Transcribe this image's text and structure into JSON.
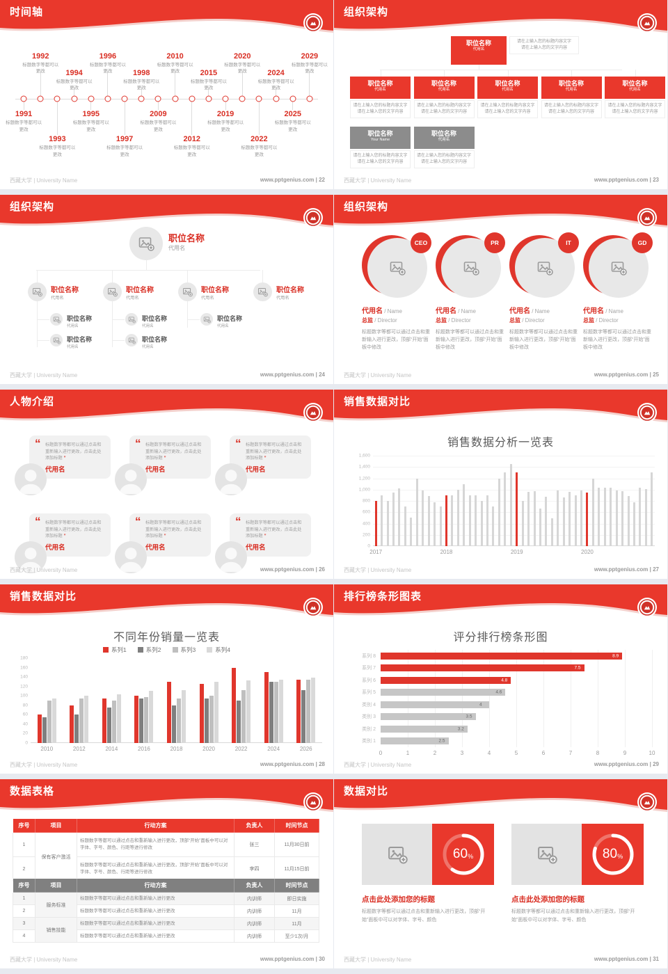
{
  "common": {
    "footer_left": "西藏大学 | University Name",
    "footer_site": "www.pptgenius.com",
    "brand_red": "#e9382c",
    "logo_name": "university-seal-logo"
  },
  "slides": [
    {
      "type": "timeline",
      "title": "时间轴",
      "page": "22",
      "footer_right": "www.pptgenius.com | 22",
      "event_caption": "标题数字等都可以更改",
      "events": [
        {
          "year": "1991",
          "dir": "down",
          "level": 1
        },
        {
          "year": "1992",
          "dir": "up",
          "level": 1
        },
        {
          "year": "1993",
          "dir": "down",
          "level": 2
        },
        {
          "year": "1994",
          "dir": "up",
          "level": 2
        },
        {
          "year": "1995",
          "dir": "down",
          "level": 1
        },
        {
          "year": "1996",
          "dir": "up",
          "level": 1
        },
        {
          "year": "1997",
          "dir": "down",
          "level": 2
        },
        {
          "year": "1998",
          "dir": "up",
          "level": 2
        },
        {
          "year": "2009",
          "dir": "down",
          "level": 1
        },
        {
          "year": "2010",
          "dir": "up",
          "level": 1
        },
        {
          "year": "2012",
          "dir": "down",
          "level": 2
        },
        {
          "year": "2015",
          "dir": "up",
          "level": 2
        },
        {
          "year": "2019",
          "dir": "down",
          "level": 1
        },
        {
          "year": "2020",
          "dir": "up",
          "level": 1
        },
        {
          "year": "2022",
          "dir": "down",
          "level": 2
        },
        {
          "year": "2024",
          "dir": "up",
          "level": 2
        },
        {
          "year": "2025",
          "dir": "down",
          "level": 1
        },
        {
          "year": "2029",
          "dir": "up",
          "level": 1
        }
      ]
    },
    {
      "type": "org-boxes",
      "title": "组织架构",
      "page": "23",
      "footer_right": "www.pptgenius.com | 23",
      "root": {
        "title": "职位名称",
        "subtitle": "代用名"
      },
      "root_desc1": "请在上输入您的标题内容文字",
      "root_desc2": "请在上输入您的文字内容",
      "children": [
        {
          "title": "职位名称",
          "subtitle": "代用名",
          "desc1": "请在上输入您的标题内容文字",
          "desc2": "请在上输入您的文字内容"
        },
        {
          "title": "职位名称",
          "subtitle": "代用名",
          "desc1": "请在上输入您的标题内容文字",
          "desc2": "请在上输入您的文字内容"
        },
        {
          "title": "职位名称",
          "subtitle": "代用名",
          "desc1": "请在上输入您的标题内容文字",
          "desc2": "请在上输入您的文字内容"
        },
        {
          "title": "职位名称",
          "subtitle": "代用名",
          "desc1": "请在上输入您的标题内容文字",
          "desc2": "请在上输入您的文字内容"
        },
        {
          "title": "职位名称",
          "subtitle": "代用名",
          "desc1": "请在上输入您的标题内容文字",
          "desc2": "请在上输入您的文字内容"
        }
      ],
      "gray_boxes": [
        {
          "title": "职位名称",
          "subtitle": "Your Name",
          "desc1": "请在上输入您的标题内容文字",
          "desc2": "请在上输入您的文字内容"
        },
        {
          "title": "职位名称",
          "subtitle": "代用名",
          "desc1": "请在上输入您的标题内容文字",
          "desc2": "请在上输入您的文字内容"
        }
      ]
    },
    {
      "type": "org-tree",
      "title": "组织架构",
      "page": "24",
      "footer_right": "www.pptgenius.com | 24",
      "root": {
        "title": "职位名称",
        "subtitle": "代用名"
      },
      "branches": [
        {
          "title": "职位名称",
          "subtitle": "代用名",
          "children": [
            {
              "title": "职位名称",
              "subtitle": "代用名"
            },
            {
              "title": "职位名称",
              "subtitle": "代用名"
            }
          ]
        },
        {
          "title": "职位名称",
          "subtitle": "代用名",
          "children": [
            {
              "title": "职位名称",
              "subtitle": "代用名"
            },
            {
              "title": "职位名称",
              "subtitle": "代用名"
            }
          ]
        },
        {
          "title": "职位名称",
          "subtitle": "代用名",
          "children": [
            {
              "title": "职位名称",
              "subtitle": "代用名"
            }
          ]
        },
        {
          "title": "职位名称",
          "subtitle": "代用名",
          "children": []
        }
      ]
    },
    {
      "type": "profiles",
      "title": "组织架构",
      "page": "25",
      "footer_right": "www.pptgenius.com | 25",
      "items": [
        {
          "badge": "CEO",
          "name": "代用名",
          "name_en": "Name",
          "role": "总监",
          "role_en": "Director",
          "desc": "标题数字等都可以通过点击和重新输入进行更改，顶部“开始”面板中修改"
        },
        {
          "badge": "PR",
          "name": "代用名",
          "name_en": "Name",
          "role": "总监",
          "role_en": "Director",
          "desc": "标题数字等都可以通过点击和重新输入进行更改，顶部“开始”面板中修改"
        },
        {
          "badge": "IT",
          "name": "代用名",
          "name_en": "Name",
          "role": "总监",
          "role_en": "Director",
          "desc": "标题数字等都可以通过点击和重新输入进行更改，顶部“开始”面板中修改"
        },
        {
          "badge": "GD",
          "name": "代用名",
          "name_en": "Name",
          "role": "总监",
          "role_en": "Director",
          "desc": "标题数字等都可以通过点击和重新输入进行更改，顶部“开始”面板中修改"
        }
      ]
    },
    {
      "type": "testimonials",
      "title": "人物介绍",
      "page": "26",
      "footer_right": "www.pptgenius.com | 26",
      "cards": [
        {
          "text": "标题数字等都可以通过点击和重新输入进行更改，点击此处添加标题",
          "name": "代用名"
        },
        {
          "text": "标题数字等都可以通过点击和重新输入进行更改，点击此处添加标题",
          "name": "代用名"
        },
        {
          "text": "标题数字等都可以通过点击和重新输入进行更改，点击此处添加标题",
          "name": "代用名"
        },
        {
          "text": "标题数字等都可以通过点击和重新输入进行更改，点击此处添加标题",
          "name": "代用名"
        },
        {
          "text": "标题数字等都可以通过点击和重新输入进行更改，点击此处添加标题",
          "name": "代用名"
        },
        {
          "text": "标题数字等都可以通过点击和重新输入进行更改，点击此处添加标题",
          "name": "代用名"
        }
      ]
    },
    {
      "type": "chart-thin-bars",
      "title": "销售数据对比",
      "page": "27",
      "footer_right": "www.pptgenius.com | 27",
      "chart_data": {
        "type": "bar",
        "title": "销售数据分析一览表",
        "ylim": [
          0,
          1600
        ],
        "yticks": [
          "1,600",
          "1,400",
          "1,200",
          "1,000",
          "800",
          "600",
          "400",
          "200",
          "0"
        ],
        "x_group_labels": [
          "2017",
          "2018",
          "2019",
          "2020"
        ],
        "group_start_indexes": [
          0,
          12,
          24,
          36
        ],
        "red_indexes": [
          0,
          12,
          24,
          36
        ],
        "values": [
          800,
          900,
          800,
          950,
          1020,
          700,
          500,
          1200,
          980,
          890,
          780,
          700,
          900,
          900,
          1000,
          1100,
          900,
          900,
          800,
          900,
          700,
          1200,
          1300,
          1450,
          1300,
          800,
          960,
          970,
          660,
          870,
          490,
          980,
          860,
          960,
          900,
          980,
          950,
          1200,
          1030,
          1040,
          1030,
          990,
          970,
          890,
          780,
          1030,
          1010,
          1300
        ],
        "bar_color": "#d6d6d6",
        "highlight_color": "#e0362c",
        "grid": true,
        "legend_position": "none"
      }
    },
    {
      "type": "chart-grouped-bars",
      "title": "销售数据对比",
      "page": "28",
      "footer_right": "www.pptgenius.com | 28",
      "chart_data": {
        "type": "bar",
        "title": "不同年份销量一览表",
        "ylim": [
          0,
          180
        ],
        "yticks": [
          "180",
          "160",
          "140",
          "120",
          "100",
          "80",
          "60",
          "40",
          "20",
          "0"
        ],
        "categories": [
          "2010",
          "2012",
          "2014",
          "2016",
          "2018",
          "2020",
          "2022",
          "2024",
          "2026"
        ],
        "legend_position": "top",
        "series": [
          {
            "name": "系列1",
            "color": "#e0362c",
            "values": [
              60,
              80,
              95,
              100,
              130,
              125,
              160,
              150,
              135
            ]
          },
          {
            "name": "系列2",
            "color": "#7f7f7f",
            "values": [
              55,
              60,
              75,
              95,
              80,
              95,
              90,
              130,
              112
            ]
          },
          {
            "name": "系列3",
            "color": "#bfbfbf",
            "values": [
              90,
              95,
              90,
              97,
              95,
              100,
              112,
              130,
              135
            ]
          },
          {
            "name": "系列4",
            "color": "#d9d9d9",
            "values": [
              95,
              100,
              103,
              110,
              112,
              130,
              133,
              135,
              138
            ]
          }
        ]
      }
    },
    {
      "type": "chart-hbars",
      "title": "排行榜条形图表",
      "page": "29",
      "footer_right": "www.pptgenius.com | 29",
      "chart_data": {
        "type": "bar",
        "title": "评分排行榜条形图",
        "orientation": "horizontal",
        "xlim": [
          0,
          10
        ],
        "xticks": [
          "0",
          "1",
          "2",
          "3",
          "4",
          "5",
          "6",
          "7",
          "8",
          "9",
          "10"
        ],
        "categories": [
          "系列 8",
          "系列 7",
          "系列 6",
          "系列 5",
          "类别 4",
          "类别 3",
          "类别 2",
          "类别 1"
        ],
        "values": [
          8.9,
          7.5,
          4.8,
          4.6,
          4,
          3.5,
          3.2,
          2.5
        ],
        "value_labels": [
          "8.9",
          "7.5",
          "4.8",
          "4.6",
          "4",
          "3.5",
          "3.2",
          "2.5"
        ],
        "red_count": 3,
        "bar_color": "#c6c6c6",
        "highlight_color": "#e0362c",
        "grid": true
      }
    },
    {
      "type": "tables",
      "title": "数据表格",
      "page": "30",
      "footer_right": "www.pptgenius.com | 30",
      "table1": {
        "headers": [
          "序号",
          "项目",
          "行动方案",
          "负责人",
          "时间节点"
        ],
        "merged_project": "保有客户激活",
        "rows": [
          {
            "no": "1",
            "plan": "标题数字等都可以通过点击和重新输入进行更改，顶部“开始”面板中可以对字体、字号、颜色、行距等进行修改",
            "owner": "张三",
            "time": "11月30日前"
          },
          {
            "no": "2",
            "plan": "标题数字等都可以通过点击和重新输入进行更改，顶部“开始”面板中可以对字体、字号、颜色、行距等进行修改",
            "owner": "李四",
            "time": "11月15日前"
          }
        ]
      },
      "table2": {
        "headers": [
          "序号",
          "项目",
          "行动方案",
          "负责人",
          "时间节点"
        ],
        "groups": [
          {
            "project": "服务标准",
            "rows": [
              {
                "no": "1",
                "plan": "标题数字等都可以通过点击和重新输入进行更改",
                "owner": "内训师",
                "time": "即日实施"
              },
              {
                "no": "2",
                "plan": "标题数字等都可以通过点击和重新输入进行更改",
                "owner": "内训师",
                "time": "11月"
              }
            ]
          },
          {
            "project": "销售技能",
            "rows": [
              {
                "no": "3",
                "plan": "标题数字等都可以通过点击和重新输入进行更改",
                "owner": "内训师",
                "time": "11月"
              },
              {
                "no": "4",
                "plan": "标题数字等都可以通过点击和重新输入进行更改",
                "owner": "内训师",
                "time": "至少1次/月"
              }
            ]
          }
        ]
      }
    },
    {
      "type": "compare",
      "title": "数据对比",
      "page": "31",
      "footer_right": "www.pptgenius.com | 31",
      "items": [
        {
          "percent": 60,
          "percent_label": "60",
          "unit": "%",
          "title": "点击此处添加您的标题",
          "desc": "标题数字等都可以通过点击和重新输入进行更改，顶部“开始”面板中可以对字体、字号、颜色"
        },
        {
          "percent": 80,
          "percent_label": "80",
          "unit": "%",
          "title": "点击此处添加您的标题",
          "desc": "标题数字等都可以通过点击和重新输入进行更改，顶部“开始”面板中可以对字体、字号、颜色"
        }
      ]
    }
  ]
}
